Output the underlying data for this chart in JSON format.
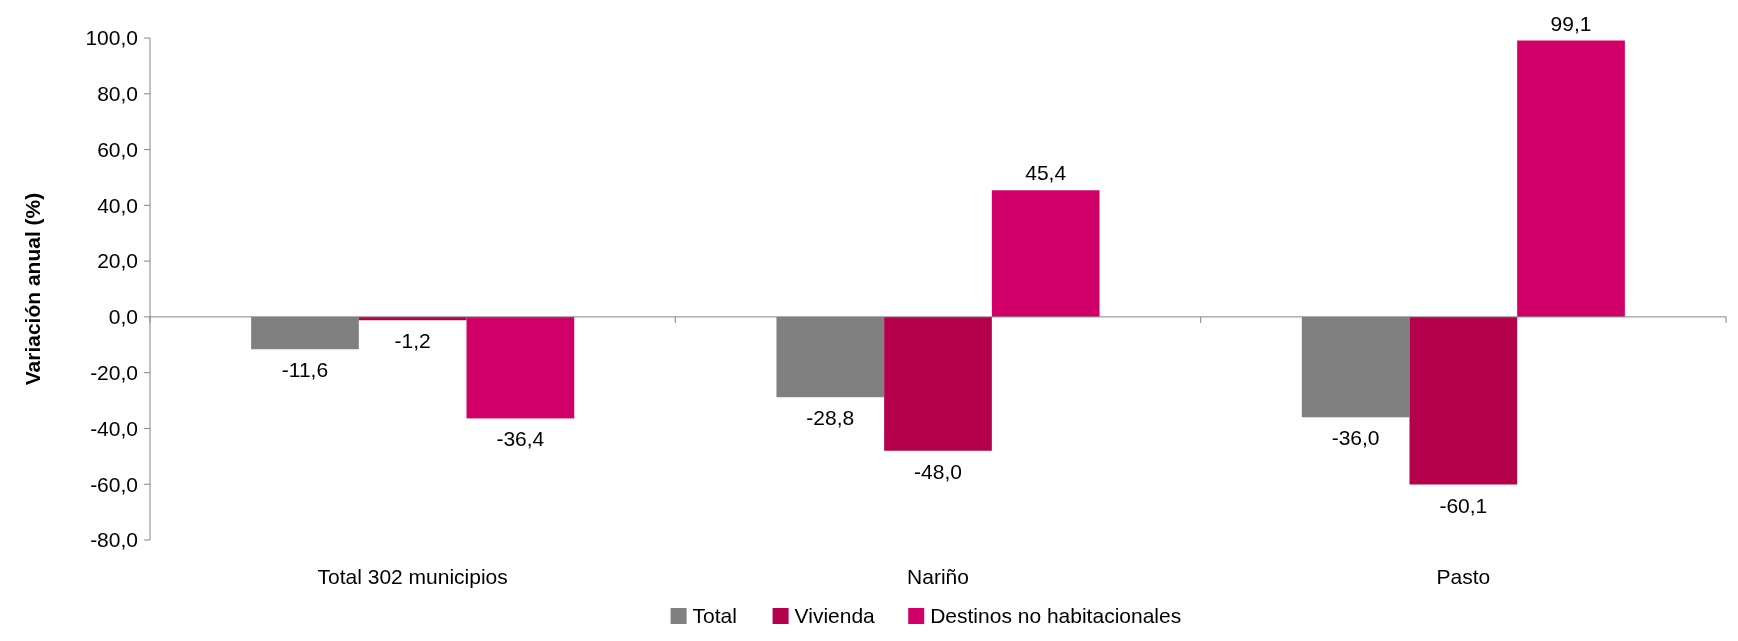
{
  "chart_data": {
    "type": "bar",
    "ylabel": "Variación anual (%)",
    "categories": [
      "Total 302 municipios",
      "Nariño",
      "Pasto"
    ],
    "series": [
      {
        "name": "Total",
        "color": "#808080",
        "values": [
          -11.6,
          -28.8,
          -36.0
        ],
        "value_labels": [
          "-11,6",
          "-28,8",
          "-36,0"
        ]
      },
      {
        "name": "Vivienda",
        "color": "#b5004b",
        "values": [
          -1.2,
          -48.0,
          -60.1
        ],
        "value_labels": [
          "-1,2",
          "-48,0",
          "-60,1"
        ]
      },
      {
        "name": "Destinos no habitacionales",
        "color": "#d10068",
        "values": [
          -36.4,
          45.4,
          99.1
        ],
        "value_labels": [
          "-36,4",
          "45,4",
          "99,1"
        ]
      }
    ],
    "ylim": [
      -80,
      100
    ],
    "yticks": [
      {
        "value": -80,
        "label": "-80,0"
      },
      {
        "value": -60,
        "label": "-60,0"
      },
      {
        "value": -40,
        "label": "-40,0"
      },
      {
        "value": -20,
        "label": "-20,0"
      },
      {
        "value": 0,
        "label": "0,0"
      },
      {
        "value": 20,
        "label": "20,0"
      },
      {
        "value": 40,
        "label": "40,0"
      },
      {
        "value": 60,
        "label": "60,0"
      },
      {
        "value": 80,
        "label": "80,0"
      },
      {
        "value": 100,
        "label": "100,0"
      }
    ],
    "legend": "bottom"
  }
}
